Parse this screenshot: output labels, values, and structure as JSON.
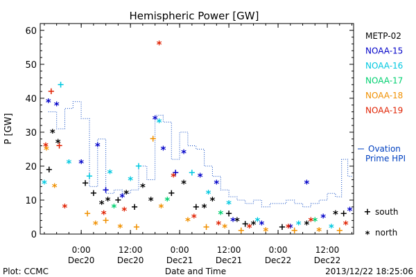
{
  "chart_data": {
    "type": "scatter",
    "title": "Hemispheric Power [GW]",
    "ylabel": "P [GW]",
    "xlabel": "Date and Time",
    "ylim": [
      0,
      62
    ],
    "xlim": [
      "2013-12-19 14:00",
      "2013-12-22 18:25"
    ],
    "yticks": [
      0,
      10,
      20,
      30,
      40,
      50,
      60
    ],
    "xticks": [
      {
        "x": "2013-12-20 00:00",
        "time": "0:00",
        "date": "Dec20"
      },
      {
        "x": "2013-12-20 12:00",
        "time": "12:00",
        "date": "Dec20"
      },
      {
        "x": "2013-12-21 00:00",
        "time": "0:00",
        "date": "Dec21"
      },
      {
        "x": "2013-12-21 12:00",
        "time": "12:00",
        "date": "Dec21"
      },
      {
        "x": "2013-12-22 00:00",
        "time": "0:00",
        "date": "Dec22"
      },
      {
        "x": "2013-12-22 12:00",
        "time": "12:00",
        "date": "Dec22"
      }
    ],
    "legend": [
      {
        "name": "METP-02",
        "color": "#000000"
      },
      {
        "name": "NOAA-15",
        "color": "#0000c8"
      },
      {
        "name": "NOAA-16",
        "color": "#00c8e0"
      },
      {
        "name": "NOAA-17",
        "color": "#00d070"
      },
      {
        "name": "NOAA-18",
        "color": "#f09000"
      },
      {
        "name": "NOAA-19",
        "color": "#e02000"
      }
    ],
    "symbol_legend": [
      {
        "symbol": "+",
        "label": "south"
      },
      {
        "symbol": "*",
        "label": "north"
      }
    ],
    "ovation_label": [
      "Ovation",
      "Prime HPI"
    ],
    "ovation_color": "#0040c0",
    "ovation_series": [
      {
        "x": "2013-12-19 16:00",
        "y": 36
      },
      {
        "x": "2013-12-19 18:00",
        "y": 31
      },
      {
        "x": "2013-12-19 20:00",
        "y": 37
      },
      {
        "x": "2013-12-19 22:00",
        "y": 39
      },
      {
        "x": "2013-12-20 00:00",
        "y": 34
      },
      {
        "x": "2013-12-20 02:00",
        "y": 14
      },
      {
        "x": "2013-12-20 04:00",
        "y": 28
      },
      {
        "x": "2013-12-20 06:00",
        "y": 12
      },
      {
        "x": "2013-12-20 08:00",
        "y": 13
      },
      {
        "x": "2013-12-20 10:00",
        "y": 12
      },
      {
        "x": "2013-12-20 12:00",
        "y": 13
      },
      {
        "x": "2013-12-20 14:00",
        "y": 20
      },
      {
        "x": "2013-12-20 16:00",
        "y": 16
      },
      {
        "x": "2013-12-20 18:00",
        "y": 35
      },
      {
        "x": "2013-12-20 20:00",
        "y": 33
      },
      {
        "x": "2013-12-20 22:00",
        "y": 22
      },
      {
        "x": "2013-12-21 00:00",
        "y": 30
      },
      {
        "x": "2013-12-21 02:00",
        "y": 26
      },
      {
        "x": "2013-12-21 04:00",
        "y": 25
      },
      {
        "x": "2013-12-21 06:00",
        "y": 20
      },
      {
        "x": "2013-12-21 08:00",
        "y": 17
      },
      {
        "x": "2013-12-21 10:00",
        "y": 13
      },
      {
        "x": "2013-12-21 12:00",
        "y": 11
      },
      {
        "x": "2013-12-21 14:00",
        "y": 10
      },
      {
        "x": "2013-12-21 16:00",
        "y": 9
      },
      {
        "x": "2013-12-21 18:00",
        "y": 10
      },
      {
        "x": "2013-12-21 20:00",
        "y": 8
      },
      {
        "x": "2013-12-21 22:00",
        "y": 9
      },
      {
        "x": "2013-12-22 00:00",
        "y": 9
      },
      {
        "x": "2013-12-22 02:00",
        "y": 10
      },
      {
        "x": "2013-12-22 04:00",
        "y": 9
      },
      {
        "x": "2013-12-22 06:00",
        "y": 8
      },
      {
        "x": "2013-12-22 08:00",
        "y": 9
      },
      {
        "x": "2013-12-22 10:00",
        "y": 10
      },
      {
        "x": "2013-12-22 12:00",
        "y": 12
      },
      {
        "x": "2013-12-22 14:00",
        "y": 11
      },
      {
        "x": "2013-12-22 15:30",
        "y": 22
      },
      {
        "x": "2013-12-22 17:00",
        "y": 17
      }
    ],
    "series": [
      {
        "name": "METP-02",
        "color": "#000000",
        "points": [
          {
            "x": "2013-12-19 16:10",
            "y": 19,
            "m": "+"
          },
          {
            "x": "2013-12-19 17:00",
            "y": 30,
            "m": "*"
          },
          {
            "x": "2013-12-19 18:20",
            "y": 27,
            "m": "*"
          },
          {
            "x": "2013-12-20 01:00",
            "y": 15,
            "m": "+"
          },
          {
            "x": "2013-12-20 03:00",
            "y": 12,
            "m": "+"
          },
          {
            "x": "2013-12-20 05:00",
            "y": 9,
            "m": "*"
          },
          {
            "x": "2013-12-20 06:30",
            "y": 10,
            "m": "*"
          },
          {
            "x": "2013-12-20 09:00",
            "y": 10,
            "m": "+"
          },
          {
            "x": "2013-12-20 11:00",
            "y": 12,
            "m": "*"
          },
          {
            "x": "2013-12-20 13:00",
            "y": 8,
            "m": "+"
          },
          {
            "x": "2013-12-20 15:00",
            "y": 14,
            "m": "*"
          },
          {
            "x": "2013-12-20 17:00",
            "y": 10,
            "m": "*"
          },
          {
            "x": "2013-12-20 22:00",
            "y": 12,
            "m": "+"
          },
          {
            "x": "2013-12-21 01:00",
            "y": 15,
            "m": "*"
          },
          {
            "x": "2013-12-21 04:00",
            "y": 8,
            "m": "+"
          },
          {
            "x": "2013-12-21 06:00",
            "y": 8,
            "m": "*"
          },
          {
            "x": "2013-12-21 08:00",
            "y": 10,
            "m": "*"
          },
          {
            "x": "2013-12-21 12:00",
            "y": 6,
            "m": "+"
          },
          {
            "x": "2013-12-21 14:00",
            "y": 4,
            "m": "*"
          },
          {
            "x": "2013-12-21 16:00",
            "y": 3,
            "m": "+"
          },
          {
            "x": "2013-12-21 18:00",
            "y": 3,
            "m": "*"
          },
          {
            "x": "2013-12-22 01:00",
            "y": 2,
            "m": "+"
          },
          {
            "x": "2013-12-22 07:00",
            "y": 3,
            "m": "*"
          },
          {
            "x": "2013-12-22 14:00",
            "y": 6,
            "m": "*"
          },
          {
            "x": "2013-12-22 16:00",
            "y": 6,
            "m": "+"
          }
        ]
      },
      {
        "name": "NOAA-15",
        "color": "#0000c8",
        "points": [
          {
            "x": "2013-12-19 16:00",
            "y": 39,
            "m": "*"
          },
          {
            "x": "2013-12-19 18:00",
            "y": 38,
            "m": "*"
          },
          {
            "x": "2013-12-20 00:00",
            "y": 21,
            "m": "*"
          },
          {
            "x": "2013-12-20 04:00",
            "y": 26,
            "m": "*"
          },
          {
            "x": "2013-12-20 06:00",
            "y": 13,
            "m": "+"
          },
          {
            "x": "2013-12-20 10:00",
            "y": 11,
            "m": "*"
          },
          {
            "x": "2013-12-20 18:00",
            "y": 34,
            "m": "*"
          },
          {
            "x": "2013-12-20 20:00",
            "y": 25,
            "m": "*"
          },
          {
            "x": "2013-12-20 23:00",
            "y": 18,
            "m": "+"
          },
          {
            "x": "2013-12-21 01:00",
            "y": 24,
            "m": "*"
          },
          {
            "x": "2013-12-21 05:00",
            "y": 17,
            "m": "*"
          },
          {
            "x": "2013-12-21 09:00",
            "y": 15,
            "m": "*"
          },
          {
            "x": "2013-12-21 13:00",
            "y": 4,
            "m": "*"
          },
          {
            "x": "2013-12-21 20:00",
            "y": 3,
            "m": "*"
          },
          {
            "x": "2013-12-22 03:00",
            "y": 2,
            "m": "*"
          },
          {
            "x": "2013-12-22 07:00",
            "y": 15,
            "m": "*"
          },
          {
            "x": "2013-12-22 11:00",
            "y": 5,
            "m": "*"
          },
          {
            "x": "2013-12-22 17:30",
            "y": 7,
            "m": "*"
          }
        ]
      },
      {
        "name": "NOAA-16",
        "color": "#00c8e0",
        "points": [
          {
            "x": "2013-12-19 15:00",
            "y": 15,
            "m": "*"
          },
          {
            "x": "2013-12-19 19:00",
            "y": 44,
            "m": "+"
          },
          {
            "x": "2013-12-19 21:00",
            "y": 21,
            "m": "*"
          },
          {
            "x": "2013-12-20 02:00",
            "y": 17,
            "m": "+"
          },
          {
            "x": "2013-12-20 07:00",
            "y": 18,
            "m": "*"
          },
          {
            "x": "2013-12-20 12:00",
            "y": 16,
            "m": "*"
          },
          {
            "x": "2013-12-20 14:00",
            "y": 20,
            "m": "+"
          },
          {
            "x": "2013-12-20 19:00",
            "y": 33,
            "m": "*"
          },
          {
            "x": "2013-12-21 03:00",
            "y": 18,
            "m": "+"
          },
          {
            "x": "2013-12-21 07:00",
            "y": 12,
            "m": "*"
          },
          {
            "x": "2013-12-21 12:00",
            "y": 9,
            "m": "*"
          },
          {
            "x": "2013-12-21 19:00",
            "y": 4,
            "m": "*"
          },
          {
            "x": "2013-12-22 05:00",
            "y": 3,
            "m": "*"
          },
          {
            "x": "2013-12-22 13:00",
            "y": 2,
            "m": "*"
          }
        ]
      },
      {
        "name": "NOAA-17",
        "color": "#00d070",
        "points": [
          {
            "x": "2013-12-20 08:00",
            "y": 8,
            "m": "*"
          },
          {
            "x": "2013-12-20 21:00",
            "y": 10,
            "m": "*"
          },
          {
            "x": "2013-12-21 10:00",
            "y": 6,
            "m": "*"
          },
          {
            "x": "2013-12-22 09:00",
            "y": 4,
            "m": "*"
          }
        ]
      },
      {
        "name": "NOAA-18",
        "color": "#f09000",
        "points": [
          {
            "x": "2013-12-19 15:30",
            "y": 25,
            "m": "*"
          },
          {
            "x": "2013-12-19 17:30",
            "y": 14,
            "m": "*"
          },
          {
            "x": "2013-12-20 01:30",
            "y": 6,
            "m": "+"
          },
          {
            "x": "2013-12-20 03:30",
            "y": 3,
            "m": "*"
          },
          {
            "x": "2013-12-20 06:00",
            "y": 4,
            "m": "+"
          },
          {
            "x": "2013-12-20 09:30",
            "y": 2,
            "m": "*"
          },
          {
            "x": "2013-12-20 13:30",
            "y": 2,
            "m": "+"
          },
          {
            "x": "2013-12-20 17:30",
            "y": 28,
            "m": "+"
          },
          {
            "x": "2013-12-20 19:30",
            "y": 8,
            "m": "*"
          },
          {
            "x": "2013-12-21 02:00",
            "y": 4,
            "m": "*"
          },
          {
            "x": "2013-12-21 06:30",
            "y": 2,
            "m": "+"
          },
          {
            "x": "2013-12-21 11:00",
            "y": 2,
            "m": "*"
          },
          {
            "x": "2013-12-21 15:00",
            "y": 1,
            "m": "+"
          },
          {
            "x": "2013-12-21 21:00",
            "y": 1,
            "m": "*"
          },
          {
            "x": "2013-12-22 04:00",
            "y": 1,
            "m": "+"
          },
          {
            "x": "2013-12-22 10:00",
            "y": 1,
            "m": "*"
          },
          {
            "x": "2013-12-22 15:00",
            "y": 1,
            "m": "+"
          }
        ]
      },
      {
        "name": "NOAA-19",
        "color": "#e02000",
        "points": [
          {
            "x": "2013-12-19 15:20",
            "y": 26,
            "m": "*"
          },
          {
            "x": "2013-12-19 16:40",
            "y": 42,
            "m": "+"
          },
          {
            "x": "2013-12-19 18:40",
            "y": 26,
            "m": "+"
          },
          {
            "x": "2013-12-19 20:00",
            "y": 8,
            "m": "*"
          },
          {
            "x": "2013-12-20 05:30",
            "y": 6,
            "m": "*"
          },
          {
            "x": "2013-12-20 10:30",
            "y": 7,
            "m": "*"
          },
          {
            "x": "2013-12-20 19:00",
            "y": 56,
            "m": "*"
          },
          {
            "x": "2013-12-20 22:30",
            "y": 17,
            "m": "*"
          },
          {
            "x": "2013-12-21 03:30",
            "y": 5,
            "m": "*"
          },
          {
            "x": "2013-12-21 09:30",
            "y": 3,
            "m": "*"
          },
          {
            "x": "2013-12-21 17:00",
            "y": 2,
            "m": "*"
          },
          {
            "x": "2013-12-22 02:30",
            "y": 2,
            "m": "*"
          },
          {
            "x": "2013-12-22 08:00",
            "y": 4,
            "m": "*"
          },
          {
            "x": "2013-12-22 16:30",
            "y": 3,
            "m": "*"
          }
        ]
      }
    ]
  },
  "footer": {
    "left": "Plot: CCMC",
    "right": "2013/12/22 18:25:06"
  }
}
